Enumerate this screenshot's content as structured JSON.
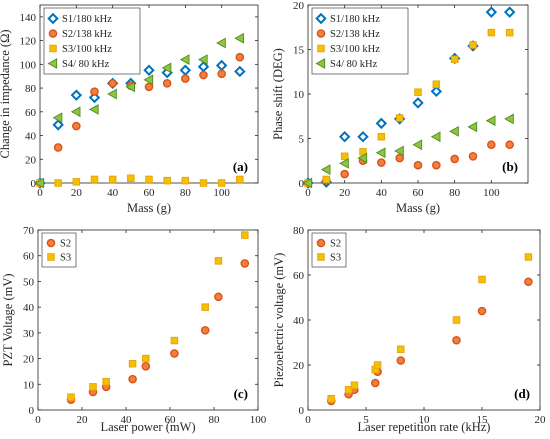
{
  "colors": {
    "S1": "#0072BD",
    "S2": "#D95319",
    "S3": "#EDB120",
    "S4": "#77AC30",
    "S2_fill": "#F08040",
    "S3_fill": "#F5C000",
    "S4_fill": "#8CC63F"
  },
  "chart_data": [
    {
      "id": "a",
      "type": "scatter",
      "panel_label": "(a)",
      "xlabel": "Mass (g)",
      "ylabel": "Change in impedance (Ω)",
      "xlim": [
        0,
        120
      ],
      "ylim": [
        0,
        150
      ],
      "xticks": [
        0,
        20,
        40,
        60,
        80,
        100
      ],
      "yticks": [
        0,
        20,
        40,
        60,
        80,
        100,
        120,
        140
      ],
      "legend": "top-left",
      "series": [
        {
          "name": "S1/180 kHz",
          "marker": "diamond",
          "color_key": "S1",
          "x": [
            0,
            10,
            20,
            30,
            40,
            50,
            60,
            70,
            80,
            90,
            100,
            110
          ],
          "y": [
            0,
            49,
            74,
            72,
            84,
            84,
            95,
            93,
            95,
            98,
            99,
            94
          ]
        },
        {
          "name": "S2/138 kHz",
          "marker": "circle",
          "color_key": "S2",
          "x": [
            0,
            10,
            20,
            30,
            40,
            50,
            60,
            70,
            80,
            90,
            100,
            110
          ],
          "y": [
            0,
            30,
            48,
            77,
            84,
            82,
            81,
            84,
            88,
            91,
            92,
            106
          ]
        },
        {
          "name": "S3/100 kHz",
          "marker": "square",
          "color_key": "S3",
          "x": [
            0,
            10,
            20,
            30,
            40,
            50,
            60,
            70,
            80,
            90,
            100,
            110
          ],
          "y": [
            0,
            0,
            1,
            3,
            3,
            4,
            3,
            2,
            2,
            0,
            0,
            3
          ]
        },
        {
          "name": "S4/ 80 kHz",
          "marker": "triangle-left",
          "color_key": "S4",
          "x": [
            0,
            10,
            20,
            30,
            40,
            50,
            60,
            70,
            80,
            90,
            100,
            110
          ],
          "y": [
            0,
            55,
            60,
            62,
            75,
            81,
            87,
            97,
            104,
            104,
            118,
            122
          ]
        }
      ]
    },
    {
      "id": "b",
      "type": "scatter",
      "panel_label": "(b)",
      "xlabel": "Mass (g)",
      "ylabel": "Phase shift (DEG)",
      "xlim": [
        0,
        120
      ],
      "ylim": [
        0,
        20
      ],
      "xticks": [
        0,
        20,
        40,
        60,
        80,
        100
      ],
      "yticks": [
        0,
        5,
        10,
        15,
        20
      ],
      "legend": "top-left",
      "series": [
        {
          "name": "S1/180 kHz",
          "marker": "diamond",
          "color_key": "S1",
          "x": [
            0,
            10,
            20,
            30,
            40,
            50,
            60,
            70,
            80,
            90,
            100,
            110
          ],
          "y": [
            0,
            0.1,
            5.2,
            5.2,
            6.7,
            7.2,
            9,
            10.3,
            14,
            15.4,
            19.2,
            19.2
          ]
        },
        {
          "name": "S2/138 kHz",
          "marker": "circle",
          "color_key": "S2",
          "x": [
            0,
            10,
            20,
            30,
            40,
            50,
            60,
            70,
            80,
            90,
            100,
            110
          ],
          "y": [
            0,
            0.3,
            1,
            2.5,
            2.3,
            2.8,
            2,
            2,
            2.7,
            3,
            4.3,
            4.3
          ]
        },
        {
          "name": "S3/100 kHz",
          "marker": "square",
          "color_key": "S3",
          "x": [
            0,
            10,
            20,
            30,
            40,
            50,
            60,
            70,
            80,
            90,
            100,
            110
          ],
          "y": [
            0,
            0.4,
            3,
            3.5,
            5.2,
            7.3,
            10.2,
            11.1,
            13.9,
            15.5,
            16.9,
            16.9
          ]
        },
        {
          "name": "S4/ 80 kHz",
          "marker": "triangle-left",
          "color_key": "S4",
          "x": [
            0,
            10,
            20,
            30,
            40,
            50,
            60,
            70,
            80,
            90,
            100,
            110
          ],
          "y": [
            0,
            1.5,
            2.2,
            2.8,
            3.4,
            3.6,
            4.3,
            5.2,
            5.8,
            6.3,
            7,
            7.2
          ]
        }
      ]
    },
    {
      "id": "c",
      "type": "scatter",
      "panel_label": "(c)",
      "xlabel": "Laser power (mW)",
      "ylabel": "PZT Voltage (mV)",
      "xlim": [
        0,
        100
      ],
      "ylim": [
        0,
        70
      ],
      "xticks": [
        0,
        20,
        40,
        60,
        80,
        100
      ],
      "yticks": [
        0,
        10,
        20,
        30,
        40,
        50,
        60,
        70
      ],
      "legend": "top-left",
      "series": [
        {
          "name": "S2",
          "marker": "circle",
          "color_key": "S2",
          "x": [
            15,
            25,
            31,
            43,
            49,
            62,
            76,
            82,
            94
          ],
          "y": [
            4,
            7,
            9,
            12,
            17,
            22,
            31,
            44,
            57
          ]
        },
        {
          "name": "S3",
          "marker": "square",
          "color_key": "S3",
          "x": [
            15,
            25,
            31,
            43,
            49,
            62,
            76,
            82,
            94
          ],
          "y": [
            5,
            9,
            11,
            18,
            20,
            27,
            40,
            58,
            68
          ]
        }
      ]
    },
    {
      "id": "d",
      "type": "scatter",
      "panel_label": "(d)",
      "xlabel": "Laser repetition rate (kHz)",
      "ylabel": "Piezoelectric voltage (mV)",
      "xlim": [
        0,
        20
      ],
      "ylim": [
        0,
        80
      ],
      "xticks": [
        0,
        5,
        10,
        15,
        20
      ],
      "yticks": [
        0,
        20,
        40,
        60,
        80
      ],
      "legend": "top-left",
      "series": [
        {
          "name": "S2",
          "marker": "circle",
          "color_key": "S2",
          "x": [
            2,
            3.5,
            4,
            5.8,
            6,
            8,
            12.8,
            15,
            19
          ],
          "y": [
            4,
            7,
            9,
            12,
            17,
            22,
            31,
            44,
            57
          ]
        },
        {
          "name": "S3",
          "marker": "square",
          "color_key": "S3",
          "x": [
            2,
            3.5,
            4,
            5.8,
            6,
            8,
            12.8,
            15,
            19
          ],
          "y": [
            5,
            9,
            11,
            18,
            20,
            27,
            40,
            58,
            68
          ]
        }
      ]
    }
  ]
}
